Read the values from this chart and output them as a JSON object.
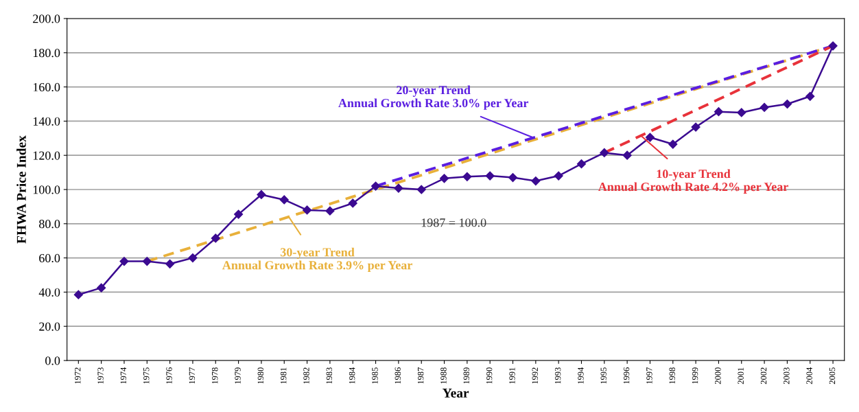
{
  "chart_data": {
    "type": "line",
    "xlabel": "Year",
    "ylabel": "FHWA Price Index",
    "x": [
      1972,
      1973,
      1974,
      1975,
      1976,
      1977,
      1978,
      1979,
      1980,
      1981,
      1982,
      1983,
      1984,
      1985,
      1986,
      1987,
      1988,
      1989,
      1990,
      1991,
      1992,
      1993,
      1994,
      1995,
      1996,
      1997,
      1998,
      1999,
      2000,
      2001,
      2002,
      2003,
      2004,
      2005
    ],
    "xlim": [
      1971.5,
      2005.5
    ],
    "xticks": [
      1972,
      1973,
      1974,
      1975,
      1976,
      1977,
      1978,
      1979,
      1980,
      1981,
      1982,
      1983,
      1984,
      1985,
      1986,
      1987,
      1988,
      1989,
      1990,
      1991,
      1992,
      1993,
      1994,
      1995,
      1996,
      1997,
      1998,
      1999,
      2000,
      2001,
      2002,
      2003,
      2004,
      2005
    ],
    "ylim": [
      0,
      200
    ],
    "yticks": [
      {
        "value": 0,
        "label": "0.0"
      },
      {
        "value": 20,
        "label": "20.0"
      },
      {
        "value": 40,
        "label": "40.0"
      },
      {
        "value": 60,
        "label": "60.0"
      },
      {
        "value": 80,
        "label": "80.0"
      },
      {
        "value": 100,
        "label": "100.0"
      },
      {
        "value": 120,
        "label": "120.0"
      },
      {
        "value": 140,
        "label": "140.0"
      },
      {
        "value": 160,
        "label": "160.0"
      },
      {
        "value": 180,
        "label": "180.0"
      },
      {
        "value": 200,
        "label": "200.0"
      }
    ],
    "grid": "y",
    "legend": false,
    "series": [
      {
        "color": "#3b0a91",
        "marker": "diamond",
        "line_style": "solid",
        "values": [
          38.5,
          42.5,
          58,
          58,
          56.5,
          60,
          71.5,
          85.5,
          97,
          94,
          88,
          87.5,
          92,
          102,
          100.8,
          100,
          106.5,
          107.5,
          108,
          107,
          105,
          108,
          115,
          121.5,
          120,
          130.5,
          126.5,
          136.5,
          145.5,
          145,
          148,
          150,
          154.5,
          184
        ]
      },
      {
        "type": "line",
        "color": "#e8b03a",
        "marker": "none",
        "line_style": "dashed",
        "x": [
          1975,
          2005
        ],
        "values": [
          58,
          184
        ]
      },
      {
        "type": "line",
        "color": "#5a1ee0",
        "marker": "none",
        "line_style": "dashed",
        "x": [
          1985,
          2005
        ],
        "values": [
          102,
          184
        ]
      },
      {
        "type": "line",
        "color": "#e8323a",
        "marker": "none",
        "line_style": "dashed",
        "x": [
          1995,
          2005
        ],
        "values": [
          121.5,
          184
        ]
      }
    ],
    "annotations": [
      {
        "text": "20-year Trend\nAnnual Growth Rate 3.0% per Year",
        "x": 1991.9,
        "y": 130.3
      },
      {
        "text": "30-year Trend\nAnnual Growth Rate 3.9% per Year",
        "x": 1981.2,
        "y": 84
      },
      {
        "text": "10-year Trend\nAnnual Growth Rate 4.2% per Year",
        "x": 1996.6,
        "y": 131.5
      },
      "1987 = 100.0"
    ]
  }
}
